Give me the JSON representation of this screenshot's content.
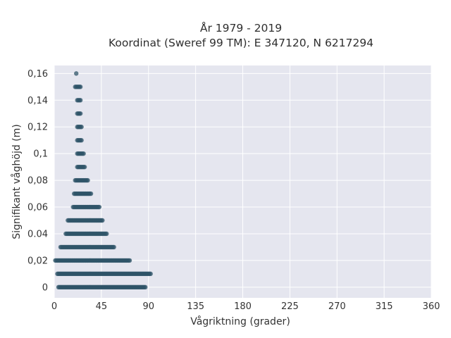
{
  "chart_data": {
    "type": "scatter",
    "title_line1": "År 1979 - 2019",
    "title_line2": "Koordinat (Sweref 99 TM): E 347120, N 6217294",
    "xlabel": "Vågriktning (grader)",
    "ylabel": "Signifikant våghöjd (m)",
    "xlim": [
      0,
      360
    ],
    "ylim": [
      -0.008,
      0.166
    ],
    "x_ticks": [
      0,
      45,
      90,
      135,
      180,
      225,
      270,
      315,
      360
    ],
    "x_tick_labels": [
      "0",
      "45",
      "90",
      "135",
      "180",
      "225",
      "270",
      "315",
      "360"
    ],
    "y_ticks": [
      0,
      0.02,
      0.04,
      0.06,
      0.08,
      0.1,
      0.12,
      0.14,
      0.16
    ],
    "y_tick_labels": [
      "0",
      "0,02",
      "0.04",
      "0,06",
      "0,08",
      "0,1",
      "0,12",
      "0,14",
      "0,16"
    ],
    "grid": true,
    "marker_color": "#2f5468",
    "plot_bg": "#e5e6ef",
    "series": [
      {
        "rows": [
          {
            "y": 0.0,
            "x_min": 4,
            "x_max": 87
          },
          {
            "y": 0.01,
            "x_min": 3,
            "x_max": 92
          },
          {
            "y": 0.02,
            "x_min": 1,
            "x_max": 72
          },
          {
            "y": 0.03,
            "x_min": 6,
            "x_max": 57
          },
          {
            "y": 0.04,
            "x_min": 11,
            "x_max": 50
          },
          {
            "y": 0.05,
            "x_min": 13,
            "x_max": 46
          },
          {
            "y": 0.06,
            "x_min": 18,
            "x_max": 43
          },
          {
            "y": 0.07,
            "x_min": 19,
            "x_max": 35
          },
          {
            "y": 0.08,
            "x_min": 20,
            "x_max": 32
          },
          {
            "y": 0.09,
            "x_min": 22,
            "x_max": 29
          },
          {
            "y": 0.1,
            "x_min": 22,
            "x_max": 28
          },
          {
            "y": 0.11,
            "x_min": 22,
            "x_max": 26
          },
          {
            "y": 0.12,
            "x_min": 22,
            "x_max": 26
          },
          {
            "y": 0.13,
            "x_min": 22,
            "x_max": 25
          },
          {
            "y": 0.14,
            "x_min": 22,
            "x_max": 25
          },
          {
            "y": 0.15,
            "x_min": 20,
            "x_max": 25
          },
          {
            "y": 0.16,
            "x_min": 21,
            "x_max": 21
          }
        ]
      }
    ]
  }
}
